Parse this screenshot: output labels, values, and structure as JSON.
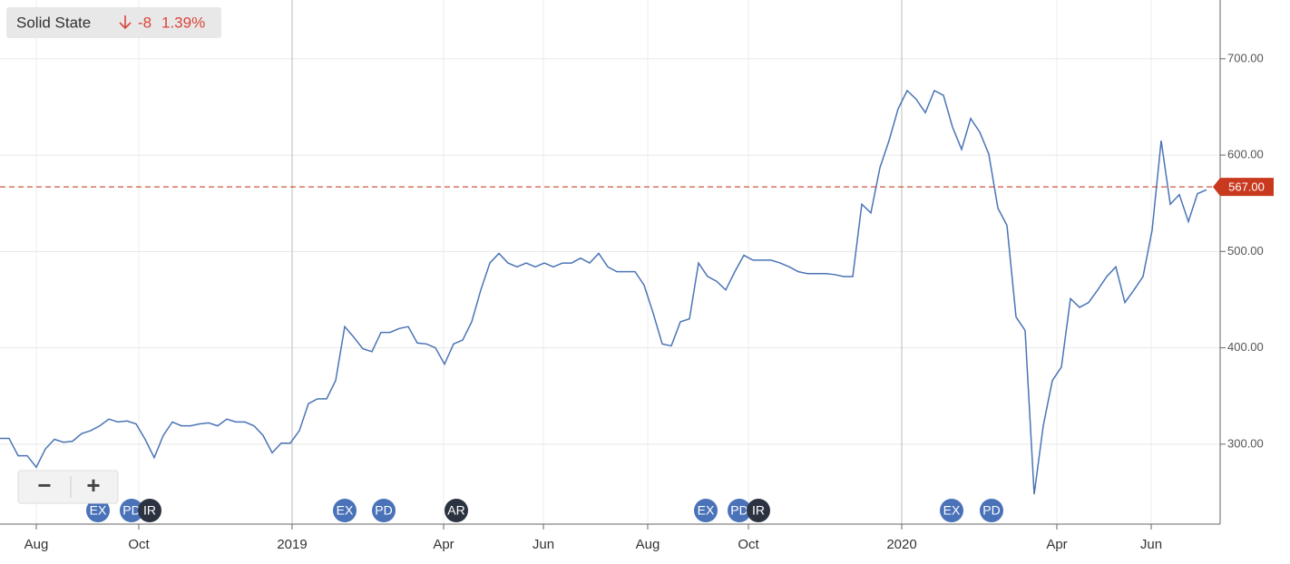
{
  "header": {
    "name": "Solid State",
    "change": "-8",
    "change_pct": "1.39%"
  },
  "zoom_controls": [
    "−",
    "+"
  ],
  "chart_data": {
    "type": "line",
    "series": [
      {
        "color": "#4a74b5",
        "values": [
          306,
          306,
          288,
          288,
          276,
          295,
          305,
          302,
          303,
          311,
          314,
          319,
          326,
          323,
          324,
          321,
          305,
          286,
          309,
          323,
          319,
          319,
          321,
          322,
          319,
          326,
          323,
          323,
          319,
          309,
          291,
          301,
          301,
          314,
          342,
          347,
          347,
          366,
          422,
          411,
          399,
          396,
          416,
          416,
          420,
          422,
          405,
          404,
          400,
          383,
          404,
          408,
          427,
          460,
          488,
          498,
          488,
          484,
          488,
          484,
          488,
          484,
          488,
          488,
          493,
          488,
          498,
          484,
          479,
          479,
          479,
          465,
          436,
          404,
          402,
          427,
          430,
          488,
          474,
          469,
          460,
          479,
          496,
          491,
          491,
          491,
          488,
          484,
          479,
          477,
          477,
          477,
          476,
          474,
          474,
          549,
          540,
          587,
          615,
          648,
          667,
          658,
          644,
          667,
          662,
          629,
          606,
          638,
          624,
          601,
          545,
          527,
          432,
          418,
          248,
          319,
          366,
          380,
          451,
          442,
          447,
          460,
          474,
          484,
          447,
          460,
          474,
          522,
          615,
          549,
          559,
          531,
          560,
          564
        ]
      }
    ],
    "xlim": [
      0,
      134.5
    ],
    "xticks": [
      {
        "value": 4,
        "label": "Aug"
      },
      {
        "value": 15.3,
        "label": "Oct"
      },
      {
        "value": 32.2,
        "label": "2019"
      },
      {
        "value": 48.9,
        "label": "Apr"
      },
      {
        "value": 59.9,
        "label": "Jun"
      },
      {
        "value": 71.4,
        "label": "Aug"
      },
      {
        "value": 82.5,
        "label": "Oct"
      },
      {
        "value": 99.4,
        "label": "2020"
      },
      {
        "value": 116.5,
        "label": "Apr"
      },
      {
        "value": 126.9,
        "label": "Jun"
      }
    ],
    "ylim": [
      217,
      761
    ],
    "yticks": [
      {
        "value": 300,
        "label": "300.00"
      },
      {
        "value": 400,
        "label": "400.00"
      },
      {
        "value": 500,
        "label": "500.00"
      },
      {
        "value": 600,
        "label": "600.00"
      },
      {
        "value": 700,
        "label": "700.00"
      }
    ],
    "grid": true,
    "reference_line": {
      "value": 567,
      "label": "567.00",
      "color": "#c8391e"
    },
    "events": [
      {
        "x": 10.8,
        "label": "EX",
        "color": "#4a72b8"
      },
      {
        "x": 14.5,
        "label": "PD",
        "color": "#4a72b8"
      },
      {
        "x": 16.5,
        "label": "IR",
        "color": "#2b3341"
      },
      {
        "x": 38,
        "label": "EX",
        "color": "#4a72b8"
      },
      {
        "x": 42.3,
        "label": "PD",
        "color": "#4a72b8"
      },
      {
        "x": 50.3,
        "label": "AR",
        "color": "#2b3341"
      },
      {
        "x": 77.8,
        "label": "EX",
        "color": "#4a72b8"
      },
      {
        "x": 81.5,
        "label": "PD",
        "color": "#4a72b8"
      },
      {
        "x": 83.6,
        "label": "IR",
        "color": "#2b3341"
      },
      {
        "x": 104.9,
        "label": "EX",
        "color": "#4a72b8"
      },
      {
        "x": 109.3,
        "label": "PD",
        "color": "#4a72b8"
      }
    ]
  }
}
